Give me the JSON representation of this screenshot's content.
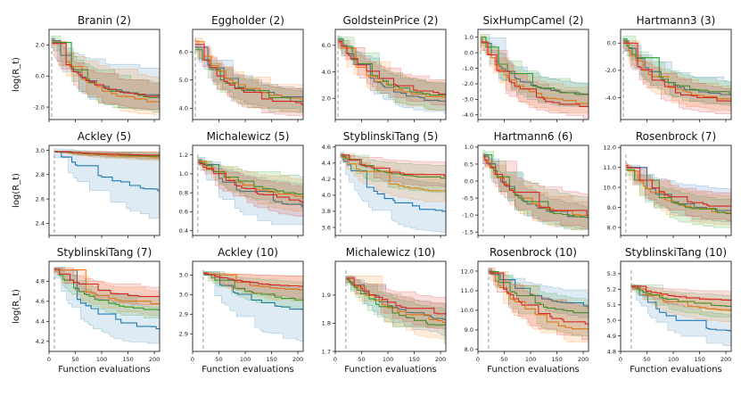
{
  "chart_data": {
    "type": "line",
    "xlabel": "Function evaluations",
    "ylabel": "log(R_t)",
    "series_colors": [
      "#1f77b4",
      "#ff7f0e",
      "#2ca02c",
      "#d62728"
    ],
    "band_alpha": 0.15,
    "x_ticks": [
      "0",
      "50",
      "100",
      "150",
      "200"
    ],
    "xlim": [
      0,
      210
    ],
    "panels": [
      {
        "title": "Branin (2)",
        "ylim": [
          -2.8,
          3.0
        ],
        "yticks": [
          "-2.0",
          "0.0",
          "2.0"
        ],
        "ytick_values": [
          -2,
          0,
          2
        ],
        "init_x": 5,
        "series": [
          {
            "start": 2.3,
            "end": -1.3,
            "lo": -2.2,
            "hi": 0.4,
            "k": 4
          },
          {
            "start": 2.2,
            "end": -1.9,
            "lo": -2.6,
            "hi": -0.3,
            "k": 3
          },
          {
            "start": 2.4,
            "end": -1.5,
            "lo": -2.4,
            "hi": -0.6,
            "k": 3.5
          },
          {
            "start": 2.1,
            "end": -1.4,
            "lo": -2.2,
            "hi": -0.7,
            "k": 3.5
          }
        ]
      },
      {
        "title": "Eggholder (2)",
        "ylim": [
          3.6,
          6.8
        ],
        "yticks": [
          "4.0",
          "5.0",
          "6.0"
        ],
        "ytick_values": [
          4,
          5,
          6
        ],
        "init_x": 5,
        "series": [
          {
            "start": 6.2,
            "end": 4.3,
            "lo": 3.9,
            "hi": 4.6,
            "k": 3.5
          },
          {
            "start": 6.4,
            "end": 4.3,
            "lo": 3.8,
            "hi": 4.6,
            "k": 3.5
          },
          {
            "start": 6.1,
            "end": 4.2,
            "lo": 3.8,
            "hi": 4.5,
            "k": 3.5
          },
          {
            "start": 6.3,
            "end": 4.1,
            "lo": 3.7,
            "hi": 4.5,
            "k": 3.5
          }
        ]
      },
      {
        "title": "GoldsteinPrice (2)",
        "ylim": [
          0.4,
          7.2
        ],
        "yticks": [
          "2.0",
          "4.0",
          "6.0"
        ],
        "ytick_values": [
          2,
          4,
          6
        ],
        "init_x": 5,
        "series": [
          {
            "start": 6.4,
            "end": 1.5,
            "lo": 0.8,
            "hi": 2.6,
            "k": 3
          },
          {
            "start": 6.2,
            "end": 1.8,
            "lo": 1.0,
            "hi": 2.8,
            "k": 3
          },
          {
            "start": 6.5,
            "end": 1.9,
            "lo": 1.0,
            "hi": 2.7,
            "k": 3
          },
          {
            "start": 6.3,
            "end": 2.1,
            "lo": 1.4,
            "hi": 3.0,
            "k": 3
          }
        ]
      },
      {
        "title": "SixHumpCamel (2)",
        "ylim": [
          -4.3,
          1.5
        ],
        "yticks": [
          "-4.0",
          "-3.0",
          "-2.0",
          "-1.0",
          "0.0",
          "1.0"
        ],
        "ytick_values": [
          -4,
          -3,
          -2,
          -1,
          0,
          1
        ],
        "init_x": 5,
        "series": [
          {
            "start": 0.8,
            "end": -2.8,
            "lo": -3.6,
            "hi": -2.2,
            "k": 3.5
          },
          {
            "start": 0.9,
            "end": -3.4,
            "lo": -4.0,
            "hi": -2.6,
            "k": 3.5
          },
          {
            "start": 1.0,
            "end": -2.8,
            "lo": -3.5,
            "hi": -2.2,
            "k": 3.5
          },
          {
            "start": 0.7,
            "end": -3.6,
            "lo": -4.2,
            "hi": -2.9,
            "k": 3.5
          }
        ]
      },
      {
        "title": "Hartmann3 (3)",
        "ylim": [
          -5.6,
          1.0
        ],
        "yticks": [
          "-4.0",
          "-2.0",
          "0.0"
        ],
        "ytick_values": [
          -4,
          -2,
          0
        ],
        "init_x": 5,
        "series": [
          {
            "start": 0.2,
            "end": -3.9,
            "lo": -4.5,
            "hi": -3.0,
            "k": 3.5
          },
          {
            "start": 0.1,
            "end": -4.2,
            "lo": -5.0,
            "hi": -3.4,
            "k": 3.5
          },
          {
            "start": 0.3,
            "end": -3.8,
            "lo": -4.6,
            "hi": -3.1,
            "k": 3.5
          },
          {
            "start": 0.0,
            "end": -4.4,
            "lo": -5.2,
            "hi": -3.6,
            "k": 3.5
          }
        ]
      },
      {
        "title": "Ackley (5)",
        "ylim": [
          2.3,
          3.04
        ],
        "yticks": [
          "2.4",
          "2.6",
          "2.8",
          "3.0"
        ],
        "ytick_values": [
          2.4,
          2.6,
          2.8,
          3.0
        ],
        "init_x": 10,
        "series": [
          {
            "start": 2.99,
            "end": 2.57,
            "lo": 2.33,
            "hi": 2.95,
            "k": 1.5
          },
          {
            "start": 2.99,
            "end": 2.93,
            "lo": 2.9,
            "hi": 2.98,
            "k": 1.5
          },
          {
            "start": 2.99,
            "end": 2.94,
            "lo": 2.91,
            "hi": 2.98,
            "k": 1.5
          },
          {
            "start": 2.99,
            "end": 2.95,
            "lo": 2.92,
            "hi": 2.98,
            "k": 1.5
          }
        ]
      },
      {
        "title": "Michalewicz (5)",
        "ylim": [
          0.35,
          1.3
        ],
        "yticks": [
          "0.4",
          "0.6",
          "0.8",
          "1.0",
          "1.2"
        ],
        "ytick_values": [
          0.4,
          0.6,
          0.8,
          1.0,
          1.2
        ],
        "init_x": 10,
        "series": [
          {
            "start": 1.15,
            "end": 0.62,
            "lo": 0.38,
            "hi": 0.85,
            "k": 2.5
          },
          {
            "start": 1.14,
            "end": 0.7,
            "lo": 0.55,
            "hi": 0.88,
            "k": 2
          },
          {
            "start": 1.13,
            "end": 0.73,
            "lo": 0.6,
            "hi": 0.92,
            "k": 2
          },
          {
            "start": 1.12,
            "end": 0.64,
            "lo": 0.5,
            "hi": 0.8,
            "k": 2
          }
        ]
      },
      {
        "title": "StyblinskiTang (5)",
        "ylim": [
          3.5,
          4.62
        ],
        "yticks": [
          "3.6",
          "3.8",
          "4.0",
          "4.2",
          "4.4",
          "4.6"
        ],
        "ytick_values": [
          3.6,
          3.8,
          4.0,
          4.2,
          4.4,
          4.6
        ],
        "init_x": 10,
        "series": [
          {
            "start": 4.5,
            "end": 3.76,
            "lo": 3.52,
            "hi": 4.1,
            "k": 3
          },
          {
            "start": 4.5,
            "end": 4.02,
            "lo": 3.9,
            "hi": 4.2,
            "k": 3
          },
          {
            "start": 4.5,
            "end": 4.2,
            "lo": 4.02,
            "hi": 4.35,
            "k": 3
          },
          {
            "start": 4.5,
            "end": 4.22,
            "lo": 4.1,
            "hi": 4.4,
            "k": 3
          }
        ]
      },
      {
        "title": "Hartmann6 (6)",
        "ylim": [
          -1.6,
          1.05
        ],
        "yticks": [
          "-1.5",
          "-1.0",
          "-0.5",
          "0.0",
          "0.5",
          "1.0"
        ],
        "ytick_values": [
          -1.5,
          -1.0,
          -0.5,
          0.0,
          0.5,
          1.0
        ],
        "init_x": 10,
        "series": [
          {
            "start": 0.75,
            "end": -1.2,
            "lo": -1.5,
            "hi": -0.9,
            "k": 3
          },
          {
            "start": 0.7,
            "end": -1.1,
            "lo": -1.5,
            "hi": -0.8,
            "k": 3
          },
          {
            "start": 0.8,
            "end": -1.2,
            "lo": -1.5,
            "hi": -0.6,
            "k": 3
          },
          {
            "start": 0.72,
            "end": -1.1,
            "lo": -1.4,
            "hi": -0.5,
            "k": 3
          }
        ]
      },
      {
        "title": "Rosenbrock (7)",
        "ylim": [
          7.6,
          12.1
        ],
        "yticks": [
          "8.0",
          "9.0",
          "10.0",
          "11.0",
          "12.0"
        ],
        "ytick_values": [
          8,
          9,
          10,
          11,
          12
        ],
        "init_x": 10,
        "series": [
          {
            "start": 11.0,
            "end": 8.7,
            "lo": 8.2,
            "hi": 9.8,
            "k": 3
          },
          {
            "start": 11.0,
            "end": 8.6,
            "lo": 8.0,
            "hi": 9.4,
            "k": 3
          },
          {
            "start": 10.9,
            "end": 8.6,
            "lo": 7.9,
            "hi": 9.2,
            "k": 3
          },
          {
            "start": 11.1,
            "end": 8.9,
            "lo": 8.3,
            "hi": 9.5,
            "k": 3
          }
        ]
      },
      {
        "title": "StyblinskiTang (7)",
        "ylim": [
          4.1,
          5.0
        ],
        "yticks": [
          "4.2",
          "4.4",
          "4.6",
          "4.8"
        ],
        "ytick_values": [
          4.2,
          4.4,
          4.6,
          4.8
        ],
        "init_x": 10,
        "series": [
          {
            "start": 4.92,
            "end": 4.3,
            "lo": 4.15,
            "hi": 4.5,
            "k": 3
          },
          {
            "start": 4.92,
            "end": 4.55,
            "lo": 4.45,
            "hi": 4.68,
            "k": 3
          },
          {
            "start": 4.92,
            "end": 4.49,
            "lo": 4.42,
            "hi": 4.6,
            "k": 3
          },
          {
            "start": 4.92,
            "end": 4.62,
            "lo": 4.55,
            "hi": 4.72,
            "k": 3
          }
        ]
      },
      {
        "title": "Ackley (10)",
        "ylim": [
          2.83,
          3.06
        ],
        "yticks": [
          "2.9",
          "2.9",
          "3.0",
          "3.0"
        ],
        "ytick_values": [
          2.875,
          2.925,
          2.975,
          3.025
        ],
        "init_x": 20,
        "series": [
          {
            "start": 3.03,
            "end": 2.92,
            "lo": 2.84,
            "hi": 2.98,
            "k": 2
          },
          {
            "start": 3.03,
            "end": 2.98,
            "lo": 2.95,
            "hi": 3.02,
            "k": 2
          },
          {
            "start": 3.03,
            "end": 2.95,
            "lo": 2.93,
            "hi": 3.0,
            "k": 2
          },
          {
            "start": 3.03,
            "end": 2.99,
            "lo": 2.96,
            "hi": 3.02,
            "k": 2
          }
        ]
      },
      {
        "title": "Michalewicz (10)",
        "ylim": [
          1.7,
          2.02
        ],
        "yticks": [
          "1.7",
          "1.8",
          "1.9"
        ],
        "ytick_values": [
          1.7,
          1.8,
          1.9
        ],
        "init_x": 20,
        "series": [
          {
            "start": 1.96,
            "end": 1.79,
            "lo": 1.74,
            "hi": 1.84,
            "k": 2
          },
          {
            "start": 1.96,
            "end": 1.78,
            "lo": 1.72,
            "hi": 1.84,
            "k": 2
          },
          {
            "start": 1.96,
            "end": 1.76,
            "lo": 1.71,
            "hi": 1.82,
            "k": 2
          },
          {
            "start": 1.96,
            "end": 1.81,
            "lo": 1.76,
            "hi": 1.87,
            "k": 2
          }
        ]
      },
      {
        "title": "Rosenbrock (10)",
        "ylim": [
          7.9,
          12.5
        ],
        "yticks": [
          "8.0",
          "9.0",
          "10.0",
          "11.0",
          "12.0"
        ],
        "ytick_values": [
          8,
          9,
          10,
          11,
          12
        ],
        "init_x": 20,
        "series": [
          {
            "start": 12.0,
            "end": 9.9,
            "lo": 9.4,
            "hi": 10.6,
            "k": 2
          },
          {
            "start": 12.0,
            "end": 8.7,
            "lo": 8.1,
            "hi": 9.8,
            "k": 2.5
          },
          {
            "start": 12.0,
            "end": 9.6,
            "lo": 8.5,
            "hi": 10.3,
            "k": 2.5
          },
          {
            "start": 12.0,
            "end": 9.0,
            "lo": 8.3,
            "hi": 9.9,
            "k": 2.5
          }
        ]
      },
      {
        "title": "StyblinskiTang (10)",
        "ylim": [
          4.8,
          5.38
        ],
        "yticks": [
          "4.8",
          "4.9",
          "5.0",
          "5.1",
          "5.2",
          "5.3"
        ],
        "ytick_values": [
          4.8,
          4.9,
          5.0,
          5.1,
          5.2,
          5.3
        ],
        "init_x": 20,
        "series": [
          {
            "start": 5.22,
            "end": 4.9,
            "lo": 4.82,
            "hi": 5.0,
            "k": 2.5
          },
          {
            "start": 5.22,
            "end": 5.05,
            "lo": 4.98,
            "hi": 5.12,
            "k": 2.5
          },
          {
            "start": 5.22,
            "end": 5.08,
            "lo": 5.01,
            "hi": 5.15,
            "k": 2.5
          },
          {
            "start": 5.22,
            "end": 5.12,
            "lo": 5.06,
            "hi": 5.18,
            "k": 2.5
          }
        ]
      }
    ]
  }
}
